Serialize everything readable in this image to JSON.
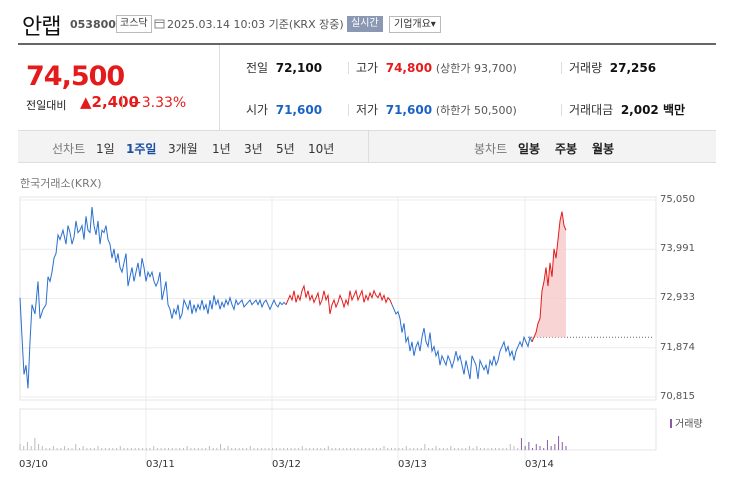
{
  "header": {
    "name": "안랩",
    "code": "053800",
    "market": "코스닥",
    "datetime": "2025.03.14 10:03 기준(KRX 장중)",
    "realtime": "실시간",
    "company": "기업개요▾"
  },
  "summary": {
    "price": "74,500",
    "change_label": "전일대비",
    "change_amount": "▲2,400",
    "change_pct": "+3.33%",
    "prev_label": "전일",
    "prev": "72,100",
    "high_label": "고가",
    "high": "74,800",
    "upper_limit": "(상한가 93,700)",
    "volume_label": "거래량",
    "volume": "27,256",
    "open_label": "시가",
    "open": "71,600",
    "low_label": "저가",
    "low": "71,600",
    "lower_limit": "(하한가 50,500)",
    "amount_label": "거래대금",
    "amount": "2,002 백만"
  },
  "tabs": {
    "line_label": "선차트",
    "periods": [
      "1일",
      "1주일",
      "3개월",
      "1년",
      "3년",
      "5년",
      "10년"
    ],
    "selected_period": "1주일",
    "candle_label": "봉차트",
    "candles": [
      "일봉",
      "주봉",
      "월봉"
    ]
  },
  "colors": {
    "up": "#e51b1b",
    "down": "#1a63c4",
    "line_blue": "#2a6fd0"
  },
  "chart_data": {
    "type": "line",
    "title": "",
    "exchange_label": "한국거래소(KRX)",
    "yticks": [
      "75,050",
      "73,991",
      "72,933",
      "71,874",
      "70,815"
    ],
    "ylim": [
      70815,
      75050
    ],
    "xticks": [
      "03/10",
      "03/11",
      "03/12",
      "03/13",
      "03/14"
    ],
    "prev_close": 72100,
    "volume_label": "거래량",
    "series": [
      {
        "color": "blue",
        "x": [
          0,
          2,
          4,
          6,
          8,
          10,
          12,
          15,
          18,
          20,
          23,
          26,
          28,
          30,
          32,
          34,
          36,
          38,
          40,
          43,
          46,
          48,
          50,
          52,
          54,
          56,
          58,
          60,
          62,
          64,
          66,
          68,
          70,
          72,
          74,
          76,
          78,
          80,
          82,
          84,
          86,
          88,
          90,
          92,
          94,
          96,
          98,
          100,
          102,
          104,
          106,
          108,
          110,
          112,
          114,
          116,
          118,
          120,
          122,
          124,
          126,
          128,
          130,
          132,
          134,
          136,
          138,
          140,
          142,
          144,
          146,
          148,
          150,
          152,
          154,
          156,
          158,
          160,
          162,
          164,
          166,
          168,
          170,
          172,
          174,
          176,
          178,
          180,
          182,
          184,
          186,
          188,
          190,
          192,
          194,
          196,
          198,
          200,
          202,
          204,
          206,
          208,
          210,
          212,
          214,
          216,
          218,
          220,
          222,
          224,
          226,
          228,
          230,
          232,
          234,
          236,
          238,
          240,
          242,
          244,
          246,
          248,
          250,
          252,
          254,
          256,
          258,
          260,
          262,
          264,
          266
        ],
        "y": [
          72950,
          72100,
          71300,
          71500,
          71000,
          72000,
          72800,
          72600,
          73300,
          72500,
          72700,
          72800,
          73400,
          73300,
          73500,
          73800,
          73900,
          74300,
          74200,
          74400,
          74100,
          74500,
          74350,
          74100,
          74250,
          74600,
          74350,
          74400,
          74500,
          74200,
          74700,
          74400,
          74350,
          74900,
          74500,
          74300,
          74600,
          74100,
          74400,
          74350,
          74500,
          74200,
          74100,
          73800,
          74000,
          73700,
          73900,
          73600,
          73500,
          73700,
          73900,
          73200,
          73400,
          73600,
          73300,
          73500,
          73700,
          73400,
          73800,
          73600,
          73300,
          73500,
          73400,
          73500,
          73300,
          73200,
          73300,
          73500,
          72900,
          73100,
          73300,
          72800,
          72700,
          72500,
          72700,
          72600,
          72800,
          72500,
          72600,
          72900,
          72800,
          72700,
          72900,
          72600,
          72800,
          72650,
          72800,
          72700,
          72900,
          72700,
          72800,
          72600,
          72900,
          72700,
          73000,
          72800,
          72900,
          72700,
          72850,
          72750,
          72900,
          72800,
          72950,
          72800,
          72700,
          72900,
          72800,
          72850,
          72900,
          72750,
          72800,
          72850,
          72900,
          72800,
          72850,
          72900,
          72800,
          72900,
          72750,
          72850,
          72900,
          72800,
          72700,
          72800,
          72900,
          72800,
          72750,
          72850,
          72800,
          72850,
          72800
        ]
      },
      {
        "color": "red",
        "x": [
          266,
          268,
          270,
          272,
          274,
          276,
          278,
          280,
          282,
          284,
          286,
          288,
          290,
          292,
          294,
          296,
          298,
          300,
          302,
          304,
          306,
          308,
          310,
          312,
          314,
          316,
          318,
          320,
          322,
          324,
          326,
          328,
          330,
          332,
          334,
          336,
          338,
          340,
          342,
          344,
          346,
          348,
          350,
          352,
          354,
          356,
          358,
          360,
          362,
          364,
          366,
          368,
          370,
          372
        ],
        "y": [
          72800,
          72900,
          73000,
          72900,
          73100,
          72850,
          73000,
          72900,
          73100,
          73200,
          72950,
          73100,
          72900,
          73000,
          72850,
          72950,
          73050,
          72800,
          72900,
          73100,
          72900,
          73000,
          72600,
          72800,
          72900,
          72750,
          72850,
          73000,
          72900,
          72750,
          72900,
          72800,
          73100,
          72900,
          73000,
          73100,
          72900,
          73000,
          73100,
          72850,
          73000,
          72900,
          73050,
          72950,
          73100,
          73000,
          72950,
          73050,
          72900,
          73000,
          72850,
          72950,
          72900,
          72800
        ]
      },
      {
        "color": "blue",
        "x": [
          372,
          374,
          376,
          378,
          380,
          382,
          384,
          386,
          388,
          390,
          392,
          394,
          396,
          398,
          400,
          402,
          404,
          406,
          408,
          410,
          412,
          414,
          416,
          418,
          420,
          422,
          424,
          426,
          428,
          430,
          432,
          434,
          436,
          438,
          440,
          442,
          444,
          446,
          448,
          450,
          452,
          454,
          456,
          458,
          460,
          462,
          464,
          466,
          468,
          470,
          472,
          474,
          476,
          478,
          480,
          482,
          484,
          486,
          488,
          490,
          492,
          494,
          496,
          498,
          500,
          502,
          504,
          506,
          508,
          510,
          512
        ],
        "y": [
          72800,
          72700,
          72600,
          72650,
          72500,
          72200,
          72400,
          72000,
          72100,
          71800,
          72000,
          71700,
          71900,
          72000,
          71800,
          72100,
          72300,
          72000,
          71900,
          72200,
          71800,
          71900,
          71700,
          71800,
          71500,
          71700,
          71600,
          71500,
          71700,
          71600,
          71450,
          71600,
          71800,
          71600,
          71700,
          71500,
          71300,
          71600,
          71400,
          71200,
          71700,
          71600,
          71500,
          71200,
          71600,
          71500,
          71400,
          71500,
          71300,
          71600,
          71500,
          71700,
          71500,
          71600,
          71800,
          71900,
          72000,
          71800,
          71900,
          71700,
          71800,
          71600,
          71800,
          71900,
          72000,
          71900,
          72100,
          72000,
          71900,
          72100,
          72000
        ]
      },
      {
        "color": "red",
        "x": [
          512,
          514,
          516,
          518,
          520,
          522,
          524,
          526,
          528,
          530,
          532,
          534,
          536,
          538,
          540,
          542,
          544,
          546
        ],
        "y": [
          72000,
          72100,
          72200,
          72400,
          72500,
          73100,
          73300,
          73600,
          73200,
          73700,
          73400,
          74000,
          73800,
          74200,
          74600,
          74800,
          74500,
          74400
        ]
      }
    ],
    "volume": [
      3,
      2,
      4,
      2,
      6,
      3,
      2,
      1,
      1,
      2,
      1,
      1,
      2,
      1,
      1,
      3,
      1,
      2,
      1,
      1,
      1,
      2,
      1,
      1,
      1,
      1,
      1,
      2,
      1,
      1,
      1,
      1,
      1,
      1,
      1,
      1,
      2,
      1,
      1,
      1,
      1,
      1,
      1,
      1,
      1,
      2,
      1,
      1,
      1,
      1,
      1,
      2,
      1,
      1,
      3,
      1,
      2,
      1,
      1,
      1,
      1,
      1,
      2,
      1,
      1,
      1,
      1,
      1,
      1,
      1,
      1,
      1,
      1,
      1,
      1,
      1,
      2,
      1,
      1,
      1,
      1,
      1,
      1,
      2,
      1,
      1,
      1,
      1,
      1,
      1,
      1,
      1,
      1,
      1,
      1,
      1,
      1,
      1,
      2,
      1,
      1,
      1,
      1,
      1,
      2,
      1,
      1,
      1,
      1,
      3,
      1,
      1,
      2,
      1,
      1,
      1,
      2,
      1,
      1,
      1,
      1,
      2,
      1,
      2,
      1,
      1,
      1,
      1,
      1,
      1,
      1,
      1,
      3,
      2,
      1,
      6,
      2,
      4,
      1,
      3,
      2,
      1,
      5,
      2,
      3,
      7,
      4,
      2
    ]
  }
}
